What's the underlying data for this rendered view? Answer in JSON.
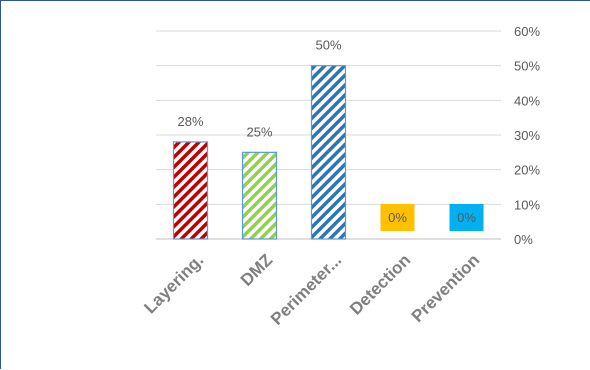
{
  "chart_data": {
    "type": "bar",
    "categories": [
      "Layering.",
      "DMZ",
      "Perimeter...",
      "Detection",
      "Prevention"
    ],
    "values": [
      28,
      25,
      50,
      0,
      0
    ],
    "data_labels": [
      "28%",
      "25%",
      "50%",
      "0%",
      "0%"
    ],
    "yticks": [
      "0%",
      "10%",
      "20%",
      "30%",
      "40%",
      "50%",
      "60%"
    ],
    "ylim": [
      0,
      60
    ],
    "y_axis_position": "right",
    "grid": true,
    "legend": "none",
    "colors": [
      "#c00000",
      "#92d050",
      "#2e75b6",
      "#ffc000",
      "#00b0f0"
    ],
    "fill_styles": [
      "hatch",
      "hatch",
      "hatch",
      "solid",
      "solid"
    ]
  }
}
